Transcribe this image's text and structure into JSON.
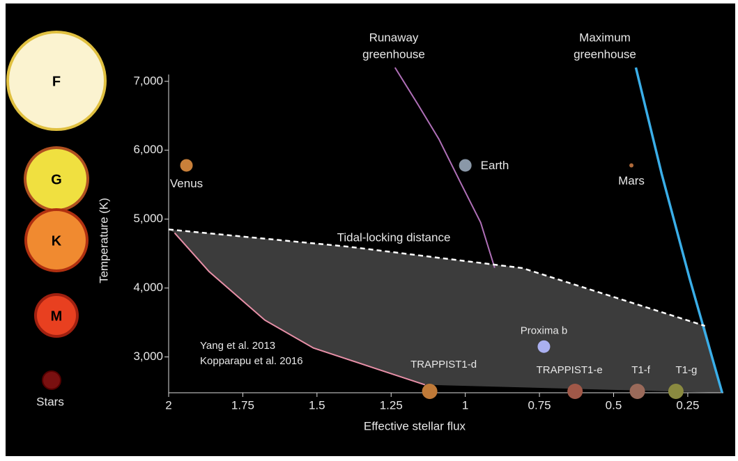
{
  "chart_data": {
    "type": "scatter",
    "xlabel": "Effective stellar flux",
    "ylabel": "Temperature (K)",
    "xlim": [
      2,
      0.13
    ],
    "ylim": [
      2480,
      7200
    ],
    "xticks": [
      2,
      1.75,
      1.5,
      1.25,
      1,
      0.75,
      0.5,
      0.25
    ],
    "yticks": [
      {
        "value": 3000,
        "label": "3,000"
      },
      {
        "value": 4000,
        "label": "4,000"
      },
      {
        "value": 5000,
        "label": "5,000"
      },
      {
        "value": 6000,
        "label": "6,000"
      },
      {
        "value": 7000,
        "label": "7,000"
      }
    ],
    "stars": [
      "F",
      "G",
      "K",
      "M"
    ],
    "stars_caption": "Stars",
    "points": [
      {
        "label": "Venus",
        "x": 1.94,
        "y": 5780,
        "color": "#c9803a"
      },
      {
        "label": "Earth",
        "x": 1.0,
        "y": 5780,
        "color": "#8a98a8"
      },
      {
        "label": "Mars",
        "x": 0.44,
        "y": 5780,
        "color": "#b06a3a"
      },
      {
        "label": "Proxima b",
        "x": 0.735,
        "y": 3150,
        "color": "#aab0f0"
      },
      {
        "label": "TRAPPIST1-d",
        "x": 1.12,
        "y": 2500,
        "color": "#c07a38"
      },
      {
        "label": "TRAPPIST1-e",
        "x": 0.63,
        "y": 2500,
        "color": "#a05848"
      },
      {
        "label": "T1-f",
        "x": 0.42,
        "y": 2500,
        "color": "#9a6a5a"
      },
      {
        "label": "T1-g",
        "x": 0.29,
        "y": 2500,
        "color": "#8a8a40"
      }
    ],
    "series": [
      {
        "name": [
          "Runaway",
          "greenhouse"
        ],
        "color": "#b070b8",
        "style": "solid",
        "x": [
          1.237,
          1.16,
          1.089,
          1.019,
          0.948,
          0.901
        ],
        "values": [
          7200,
          6667,
          6162,
          5556,
          4949,
          4293
        ]
      },
      {
        "name": [
          "Maximum",
          "greenhouse"
        ],
        "color": "#3aaee8",
        "style": "solid",
        "x": [
          0.425,
          0.338,
          0.244,
          0.134
        ],
        "values": [
          7200,
          5657,
          4141,
          2480
        ]
      },
      {
        "name": [
          "Tidal-locking distance"
        ],
        "color": "#ffffff",
        "style": "dashed",
        "x": [
          2,
          1.394,
          0.808,
          0.192
        ],
        "values": [
          4850,
          4600,
          4290,
          3450
        ]
      },
      {
        "name": [
          "Yang et al. 2013",
          "Kopparapu et al. 2016"
        ],
        "color": "#e890a8",
        "style": "solid",
        "x": [
          1.98,
          1.864,
          1.676,
          1.512,
          1.3,
          1.136
        ],
        "values": [
          4800,
          4240,
          3535,
          3130,
          2828,
          2596
        ]
      }
    ]
  }
}
